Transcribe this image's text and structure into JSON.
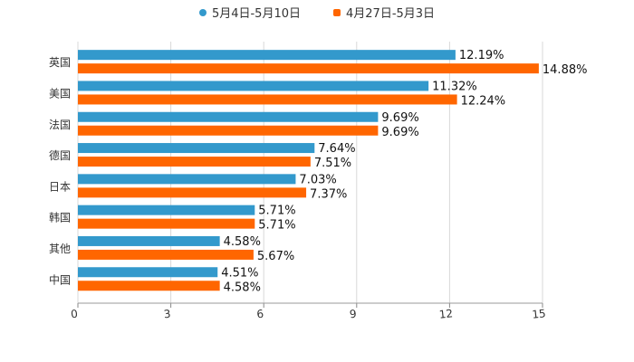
{
  "chart_data": {
    "type": "bar",
    "orientation": "horizontal",
    "categories": [
      "英国",
      "美国",
      "法国",
      "德国",
      "日本",
      "韩国",
      "其他",
      "中国"
    ],
    "series": [
      {
        "name": "5月4日-5月10日",
        "color": "#3399cc",
        "values": [
          12.19,
          11.32,
          9.69,
          7.64,
          7.03,
          5.71,
          4.58,
          4.51
        ]
      },
      {
        "name": "4月27日-5月3日",
        "color": "#ff6600",
        "values": [
          14.88,
          12.24,
          9.69,
          7.51,
          7.37,
          5.71,
          5.67,
          4.58
        ]
      }
    ],
    "value_suffix": "%",
    "xlim": [
      0,
      15
    ],
    "xticks": [
      0,
      3,
      6,
      9,
      12,
      15
    ],
    "grid": true,
    "legend_position": "top"
  }
}
